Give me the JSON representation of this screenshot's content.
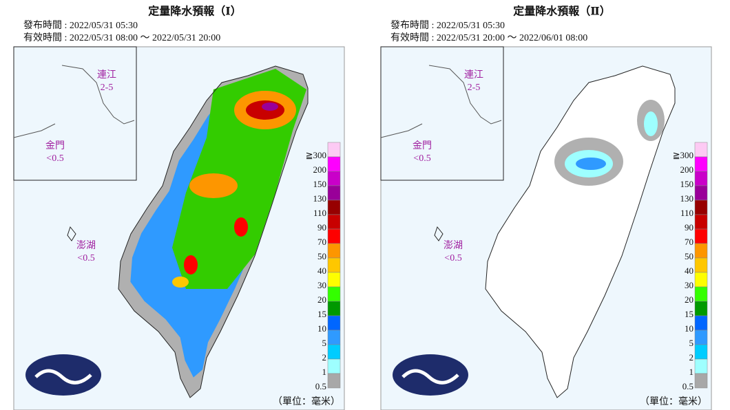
{
  "panels": [
    {
      "title": "定量降水預報（Ⅰ）",
      "issued": "發布時間 : 2022/05/31 05:30",
      "valid": "有效時間 : 2022/05/31 08:00 ～ 2022/05/31 20:00",
      "islands": [
        {
          "name": "連江",
          "value": "2-5"
        },
        {
          "name": "金門",
          "value": "<0.5"
        },
        {
          "name": "澎湖",
          "value": "<0.5"
        }
      ]
    },
    {
      "title": "定量降水預報（Ⅱ）",
      "issued": "發布時間 : 2022/05/31 05:30",
      "valid": "有效時間 : 2022/05/31 20:00 ～ 2022/06/01 08:00",
      "islands": [
        {
          "name": "連江",
          "value": "2-5"
        },
        {
          "name": "金門",
          "value": "<0.5"
        },
        {
          "name": "澎湖",
          "value": "<0.5"
        }
      ]
    }
  ],
  "legend": [
    {
      "label": "≧300",
      "color": "#fdcaf4"
    },
    {
      "label": "200",
      "color": "#fe00fe"
    },
    {
      "label": "150",
      "color": "#c900c9"
    },
    {
      "label": "130",
      "color": "#990099"
    },
    {
      "label": "110",
      "color": "#970000"
    },
    {
      "label": "90",
      "color": "#c80000"
    },
    {
      "label": "70",
      "color": "#fe0000"
    },
    {
      "label": "50",
      "color": "#fd9600"
    },
    {
      "label": "40",
      "color": "#fec700"
    },
    {
      "label": "30",
      "color": "#fefe00"
    },
    {
      "label": "20",
      "color": "#33ff00"
    },
    {
      "label": "15",
      "color": "#009900"
    },
    {
      "label": "10",
      "color": "#0066ff"
    },
    {
      "label": "5",
      "color": "#2f9aff"
    },
    {
      "label": "2",
      "color": "#00ccff"
    },
    {
      "label": "1",
      "color": "#9effff"
    },
    {
      "label": "0.5",
      "color": "#a8a8a8"
    }
  ],
  "unit": "（單位：毫米）"
}
